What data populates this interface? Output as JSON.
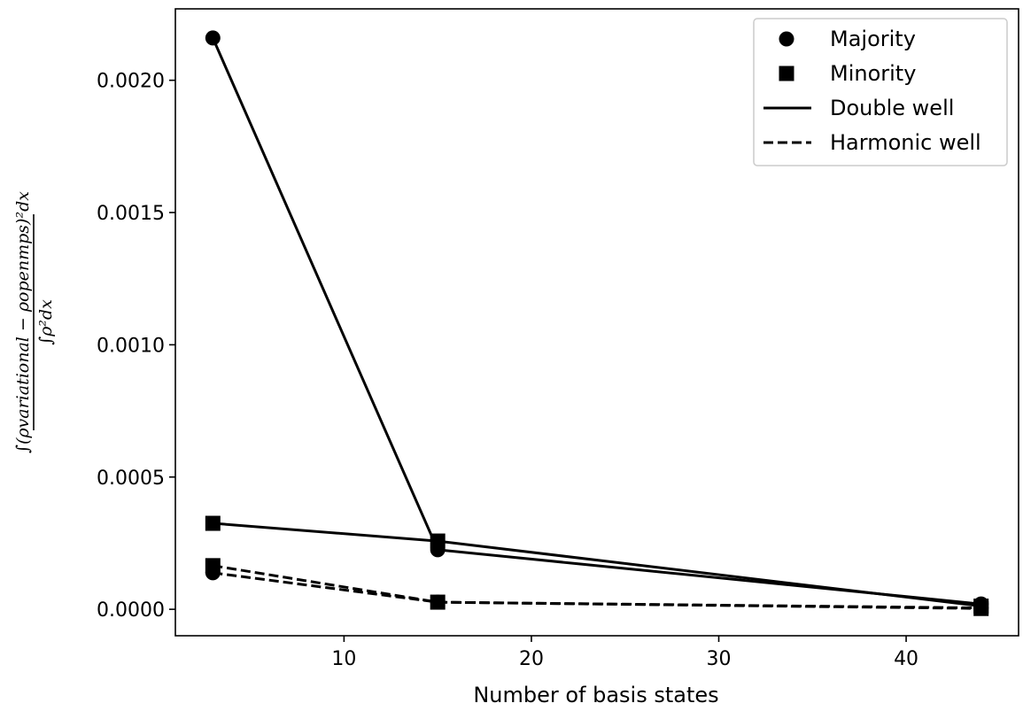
{
  "chart_data": {
    "type": "line",
    "xlabel": "Number of basis states",
    "ylabel": {
      "numerator": "∫(ρvariational − ρopenmps)²dx",
      "denominator": "∫ρ²dx"
    },
    "x": [
      3,
      15,
      44
    ],
    "xlim": [
      1.0,
      46.0
    ],
    "ylim": [
      -0.0001,
      0.00227
    ],
    "xticks": [
      10,
      20,
      30,
      40
    ],
    "yticks": [
      0.0,
      0.0005,
      0.001,
      0.0015,
      0.002
    ],
    "xtick_labels": [
      "10",
      "20",
      "30",
      "40"
    ],
    "ytick_labels": [
      "0.0000",
      "0.0005",
      "0.0010",
      "0.0015",
      "0.0020"
    ],
    "grid": false,
    "legend_position": "top-right",
    "legend": [
      {
        "label": "Majority",
        "kind": "marker",
        "marker": "circle"
      },
      {
        "label": "Minority",
        "kind": "marker",
        "marker": "square"
      },
      {
        "label": "Double well",
        "kind": "line",
        "dash": "solid"
      },
      {
        "label": "Harmonic well",
        "kind": "line",
        "dash": "dashed"
      }
    ],
    "series": [
      {
        "values": [
          0.00216,
          0.000225,
          2e-05
        ],
        "marker": "circle",
        "dash": "solid",
        "color": "#000000"
      },
      {
        "values": [
          0.000325,
          0.000258,
          1.2e-05
        ],
        "marker": "square",
        "dash": "solid",
        "color": "#000000"
      },
      {
        "values": [
          0.000138,
          2.7e-05,
          5e-06
        ],
        "marker": "circle",
        "dash": "dashed",
        "color": "#000000"
      },
      {
        "values": [
          0.000165,
          2.7e-05,
          3e-06
        ],
        "marker": "square",
        "dash": "dashed",
        "color": "#000000"
      }
    ]
  }
}
